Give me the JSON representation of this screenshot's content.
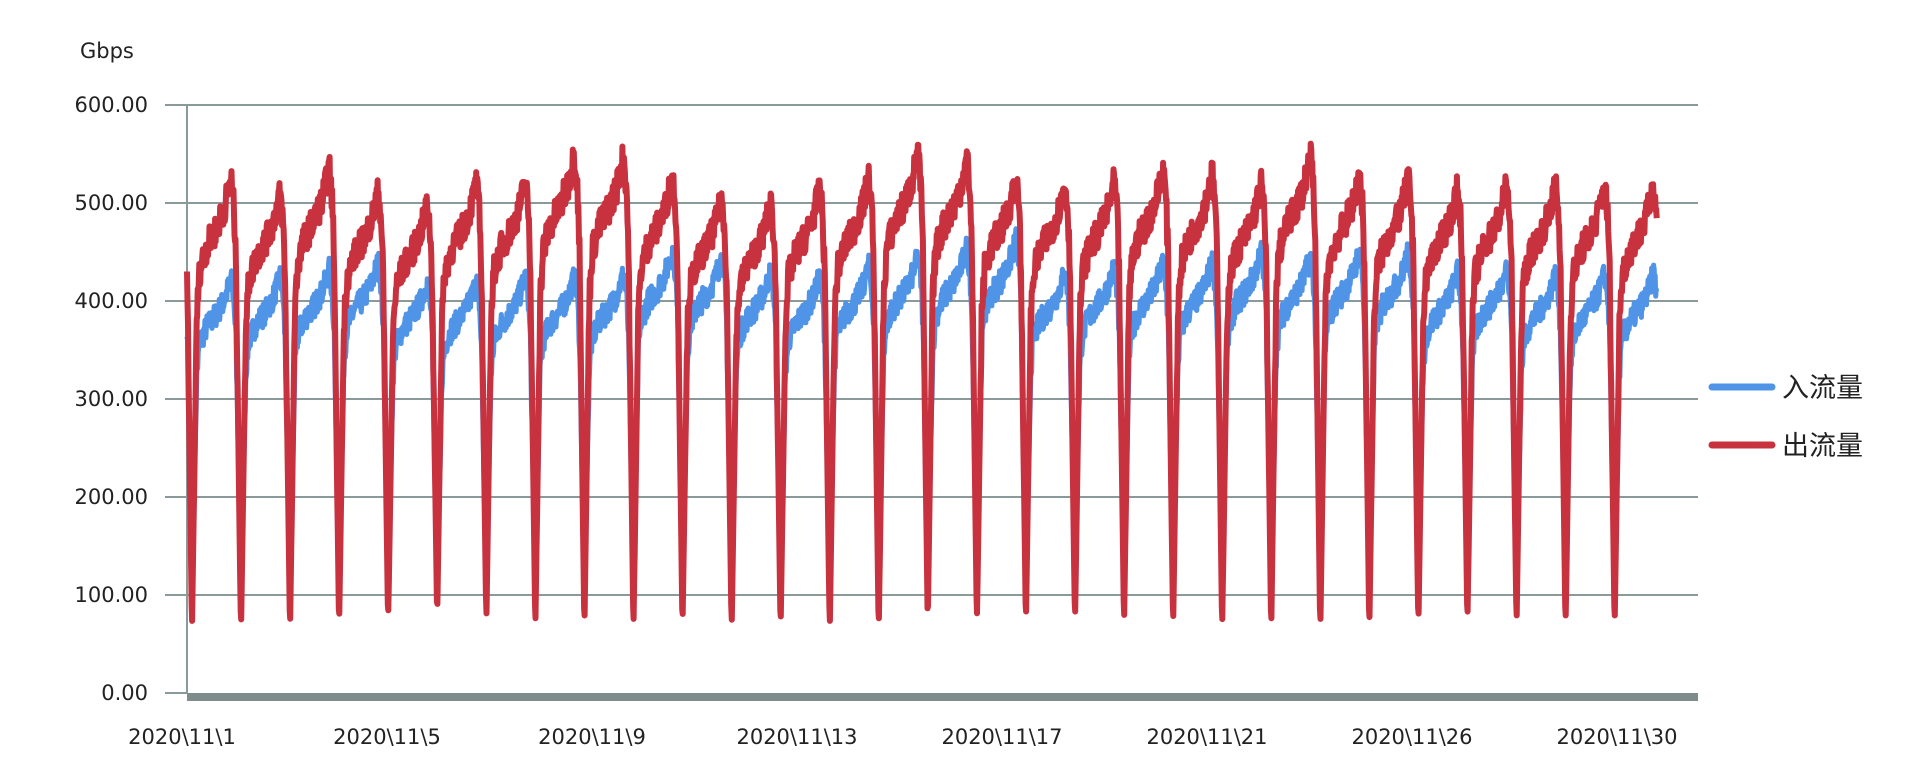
{
  "chart_data": {
    "type": "line",
    "ylabel": "Gbps",
    "ylim": [
      0,
      600
    ],
    "yticks": [
      "0.00",
      "100.00",
      "200.00",
      "300.00",
      "400.00",
      "500.00",
      "600.00"
    ],
    "xtick_labels": [
      "2020\\11\\1",
      "2020\\11\\5",
      "2020\\11\\9",
      "2020\\11\\13",
      "2020\\11\\17",
      "2020\\11\\21",
      "2020\\11\\26",
      "2020\\11\\30"
    ],
    "grid": true,
    "legend_position": "right",
    "series": [
      {
        "name": "入流量",
        "color": "#4f94e6",
        "daily_peak": [
          445,
          422,
          425,
          432,
          440,
          420,
          420,
          425,
          425,
          428,
          452,
          445,
          430,
          425,
          435,
          445,
          455,
          462,
          430,
          435,
          440,
          440,
          450,
          445,
          450,
          450,
          430,
          435,
          428,
          428
        ],
        "daily_trough": [
          105,
          100,
          100,
          102,
          104,
          100,
          98,
          100,
          102,
          100,
          100,
          105,
          102,
          100,
          100,
          104,
          100,
          100,
          100,
          102,
          100,
          100,
          102,
          100,
          100,
          100,
          102,
          100,
          98,
          100
        ]
      },
      {
        "name": "出流量",
        "color": "#c8323f",
        "daily_peak": [
          535,
          525,
          510,
          535,
          512,
          498,
          520,
          522,
          550,
          548,
          528,
          505,
          500,
          515,
          525,
          550,
          545,
          525,
          520,
          522,
          535,
          530,
          520,
          548,
          530,
          525,
          515,
          518,
          518,
          518
        ],
        "daily_trough": [
          68,
          60,
          62,
          62,
          68,
          72,
          78,
          68,
          62,
          65,
          62,
          68,
          62,
          65,
          60,
          62,
          75,
          68,
          70,
          70,
          66,
          65,
          62,
          62,
          62,
          64,
          68,
          70,
          66,
          66
        ]
      }
    ]
  }
}
